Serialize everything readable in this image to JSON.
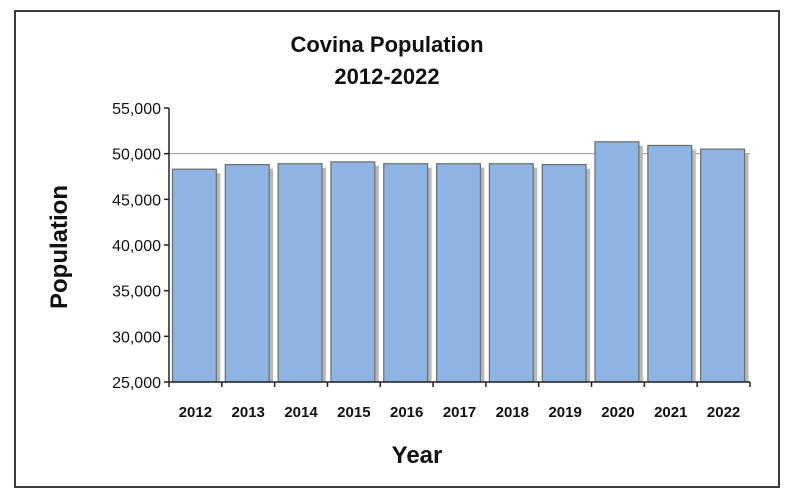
{
  "chart_data": {
    "type": "bar",
    "title": "Covina Population",
    "subtitle": "2012-2022",
    "xlabel": "Year",
    "ylabel": "Population",
    "categories": [
      "2012",
      "2013",
      "2014",
      "2015",
      "2016",
      "2017",
      "2018",
      "2019",
      "2020",
      "2021",
      "2022"
    ],
    "values": [
      48300,
      48800,
      48900,
      49100,
      48900,
      48900,
      48900,
      48800,
      51300,
      50900,
      50500
    ],
    "ylim": [
      25000,
      55000
    ],
    "yticks": [
      25000,
      30000,
      35000,
      40000,
      45000,
      50000,
      55000
    ],
    "ytick_labels": [
      "25,000",
      "30,000",
      "35,000",
      "40,000",
      "45,000",
      "50,000",
      "55,000"
    ],
    "gridlines": [
      50000
    ],
    "legend": "none",
    "bar_color": "#8eb4e3",
    "bar_border_color": "#6b6b6b",
    "shadow_color": "#b8b8b8"
  }
}
